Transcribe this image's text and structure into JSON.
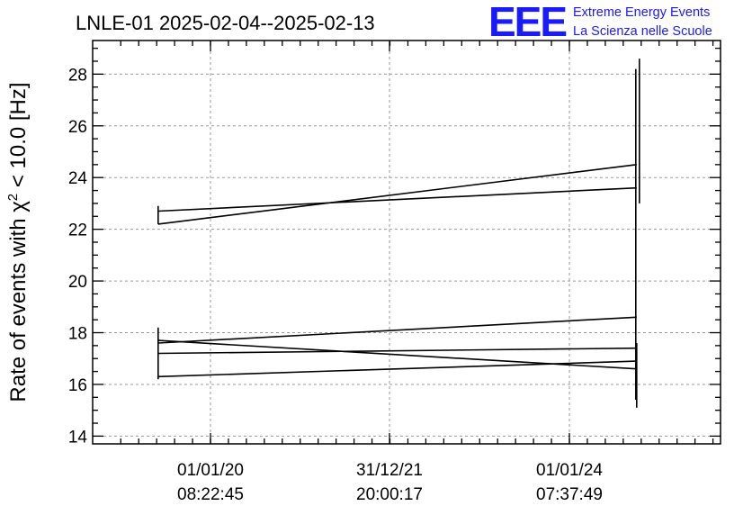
{
  "header": {
    "title": "LNLE-01 2025-02-04--2025-02-13",
    "logo_mark": "EEE",
    "logo_line1": "Extreme Energy Events",
    "logo_line2": "La Scienza nelle Scuole"
  },
  "chart_data": {
    "type": "line",
    "title": "LNLE-01 2025-02-04--2025-02-13",
    "xlabel": "",
    "ylabel_parts": [
      "Rate of events with ",
      "χ",
      "2",
      " < 10.0 [Hz]"
    ],
    "ylim": [
      13.7,
      29.3
    ],
    "yticks": [
      14,
      16,
      18,
      20,
      22,
      24,
      26,
      28
    ],
    "xticks": [
      {
        "date": "01/01/20",
        "time": "08:22:45"
      },
      {
        "date": "31/12/21",
        "time": "20:00:17"
      },
      {
        "date": "01/01/24",
        "time": "07:37:49"
      }
    ],
    "grid": true,
    "x": [
      "2019-06",
      "2024-10"
    ],
    "series": [
      {
        "values": [
          22.2,
          24.5
        ]
      },
      {
        "values": [
          22.7,
          23.6
        ]
      },
      {
        "values": [
          17.6,
          18.6
        ]
      },
      {
        "values": [
          17.2,
          17.4
        ]
      },
      {
        "values": [
          17.7,
          16.6
        ]
      },
      {
        "values": [
          16.3,
          16.9
        ]
      }
    ],
    "vertical_segments": [
      {
        "x": "2019-06",
        "range": [
          22.2,
          22.9
        ]
      },
      {
        "x": "2019-06",
        "range": [
          16.2,
          18.2
        ]
      },
      {
        "x": "2024-10",
        "range": [
          15.4,
          28.2
        ]
      },
      {
        "x": "2024-10",
        "range": [
          23.0,
          28.6
        ]
      },
      {
        "x": "2024-10",
        "range": [
          15.1,
          17.6
        ]
      }
    ]
  },
  "colors": {
    "logo": "#1a1aff",
    "grid": "#9a9a9a",
    "line": "#000000"
  }
}
